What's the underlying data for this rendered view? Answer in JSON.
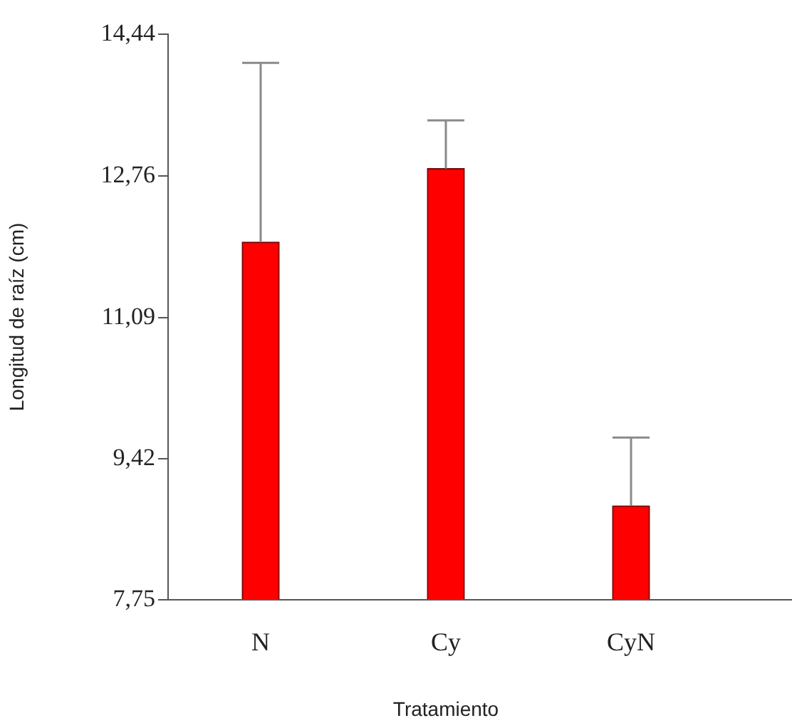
{
  "chart_data": {
    "type": "bar",
    "xlabel": "Tratamiento",
    "ylabel": "Longitud de raíz (cm)",
    "categories": [
      "N",
      "Cy",
      "CyN"
    ],
    "values": [
      11.98,
      12.85,
      8.86
    ],
    "errors": [
      [
        11.98,
        14.1
      ],
      [
        12.85,
        13.42
      ],
      [
        8.86,
        9.67
      ]
    ],
    "color": "#ff0000",
    "ylim": [
      7.75,
      14.44
    ],
    "yticks": [
      {
        "value": 7.75,
        "label": "7,75"
      },
      {
        "value": 9.42,
        "label": "9,42"
      },
      {
        "value": 11.09,
        "label": "11,09"
      },
      {
        "value": 12.76,
        "label": "12,76"
      },
      {
        "value": 14.44,
        "label": "14,44"
      }
    ],
    "grid": false,
    "legend": false
  }
}
